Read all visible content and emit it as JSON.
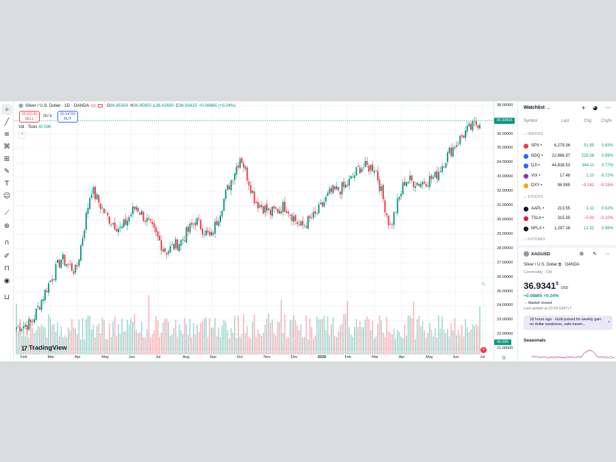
{
  "symbol": {
    "title": "Silver / U.S. Dollar · 1D · OANDA",
    "ohlc": [
      {
        "label": "O",
        "value": "36.85350"
      },
      {
        "label": "H",
        "value": "36.95950"
      },
      {
        "label": "L",
        "value": "36.62600"
      },
      {
        "label": "C",
        "value": "36.93415"
      }
    ],
    "change": "+0.08865 (+0.24%)",
    "sell_price": "36.92130",
    "sell_label": "SELL",
    "spread": "257.0",
    "buy_price": "36.94700",
    "buy_label": "BUY",
    "volume_label": "Vol · Ticks",
    "volume_value": "40.59K",
    "last_price_tag": "36.93415",
    "volume_tag": "40.59K"
  },
  "brand": "TradingView",
  "price_axis": [
    "38.00000",
    "37.00000",
    "36.00000",
    "35.00000",
    "34.00000",
    "33.00000",
    "32.00000",
    "31.00000",
    "30.00000",
    "29.00000",
    "28.00000",
    "27.00000",
    "26.00000",
    "25.00000",
    "24.00000",
    "23.00000",
    "22.00000",
    "21.00000"
  ],
  "time_axis": [
    "Feb",
    "Mar",
    "Apr",
    "May",
    "Jun",
    "Jul",
    "Aug",
    "Sep",
    "Oct",
    "Nov",
    "Dec",
    "2025",
    "Feb",
    "Mar",
    "Apr",
    "May",
    "Jun",
    "Jul"
  ],
  "chart_data": {
    "type": "candlestick",
    "x_start": "Feb",
    "x_end": "Jul",
    "ylim": [
      20.6,
      38.3
    ],
    "up_color": "#089981",
    "down_color": "#f23645",
    "close_path": [
      [
        "Feb",
        22.5
      ],
      [
        "Mar",
        22.8
      ],
      [
        "Apr",
        25.2
      ],
      [
        "Apr",
        27.3
      ],
      [
        "May",
        26.4
      ],
      [
        "May",
        32.2
      ],
      [
        "Jun",
        30.3
      ],
      [
        "Jun",
        29.3
      ],
      [
        "Jul",
        31.0
      ],
      [
        "Jul",
        29.5
      ],
      [
        "Aug",
        27.8
      ],
      [
        "Aug",
        28.5
      ],
      [
        "Sep",
        30.0
      ],
      [
        "Sep",
        28.7
      ],
      [
        "Oct",
        31.8
      ],
      [
        "Oct",
        34.5
      ],
      [
        "Nov",
        31.3
      ],
      [
        "Nov",
        30.5
      ],
      [
        "Dec",
        31.0
      ],
      [
        "Dec",
        29.5
      ],
      [
        "2025",
        30.3
      ],
      [
        "Feb",
        31.9
      ],
      [
        "Feb",
        32.3
      ],
      [
        "Mar",
        33.7
      ],
      [
        "Mar",
        33.7
      ],
      [
        "Apr",
        29.5
      ],
      [
        "Apr",
        32.8
      ],
      [
        "May",
        32.6
      ],
      [
        "May",
        33.0
      ],
      [
        "Jun",
        34.8
      ],
      [
        "Jun",
        36.1
      ],
      [
        "Jul",
        36.9
      ]
    ]
  },
  "watchlist": {
    "title": "Watchlist",
    "columns": [
      "Symbol",
      "Last",
      "Chg",
      "Chg%"
    ],
    "sections": [
      {
        "name": "INDICES",
        "items": [
          {
            "symbol": "SPX",
            "last": "6,279.36",
            "chg": "51.95",
            "chgp": "0.83%",
            "dir": "up",
            "color": "#f23645"
          },
          {
            "symbol": "NDQ",
            "last": "22,866.97",
            "chg": "225.08",
            "chgp": "0.99%",
            "dir": "up",
            "color": "#2962ff"
          },
          {
            "symbol": "DJI",
            "last": "44,828.53",
            "chg": "344.11",
            "chgp": "0.77%",
            "dir": "up",
            "color": "#2962ff"
          },
          {
            "symbol": "VIX",
            "last": "17.48",
            "chg": "1.10",
            "chgp": "6.72%",
            "dir": "up",
            "color": "#9c27b0"
          },
          {
            "symbol": "DXY",
            "last": "96.985",
            "chg": "−0.142",
            "chgp": "−0.15%",
            "dir": "dn",
            "color": "#f7a600"
          }
        ]
      },
      {
        "name": "STOCKS",
        "items": [
          {
            "symbol": "AAPL",
            "last": "213.55",
            "chg": "1.11",
            "chgp": "0.52%",
            "dir": "up",
            "color": "#131722"
          },
          {
            "symbol": "TSLA",
            "last": "315.35",
            "chg": "−0.30",
            "chgp": "−0.10%",
            "dir": "dn",
            "color": "#e31937"
          },
          {
            "symbol": "NFLX",
            "last": "1,297.18",
            "chg": "12.32",
            "chgp": "0.96%",
            "dir": "up",
            "color": "#131722"
          }
        ]
      },
      {
        "name": "FUTURES",
        "items": []
      }
    ]
  },
  "details": {
    "symbol": "XAGUSD",
    "name": "Silver / U.S. Dollar",
    "exchange": "· OANDA",
    "type": "Commodity · Cfd",
    "price_main": "36.9341",
    "price_sup": "5",
    "currency": "USD",
    "change": "+0.08865 +0.24%",
    "status": "Market closed",
    "last_update": "Last update at 03:59 GMT+7",
    "news": "18 hours ago · Gold poised for weekly gain on dollar weakness, safe-haven...",
    "seasonals": "Seasonals"
  }
}
